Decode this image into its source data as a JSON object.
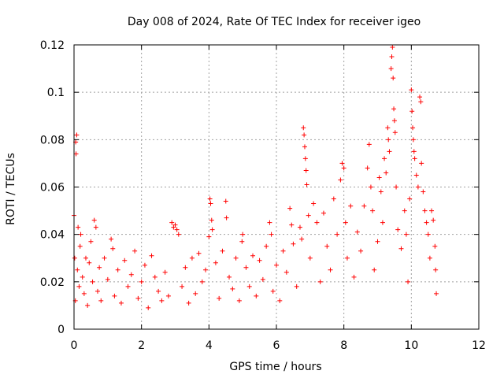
{
  "chart_data": {
    "type": "scatter",
    "title": "Day 008 of 2024, Rate Of TEC Index for receiver igeo",
    "xlabel": "GPS time / hours",
    "ylabel": "ROTI / TECUs",
    "xlim": [
      0,
      12
    ],
    "ylim": [
      0,
      0.12
    ],
    "x_ticks": [
      "0",
      "2",
      "4",
      "6",
      "8",
      "10",
      "12"
    ],
    "y_ticks": [
      "0",
      "0.02",
      "0.04",
      "0.06",
      "0.08",
      "0.1",
      "0.12"
    ],
    "grid": true,
    "marker": "+",
    "series": [
      {
        "name": "ROTI",
        "color": "#ff0000",
        "points": [
          [
            0.0,
            0.048
          ],
          [
            0.02,
            0.03
          ],
          [
            0.04,
            0.012
          ],
          [
            0.05,
            0.079
          ],
          [
            0.06,
            0.074
          ],
          [
            0.08,
            0.082
          ],
          [
            0.1,
            0.025
          ],
          [
            0.12,
            0.043
          ],
          [
            0.15,
            0.018
          ],
          [
            0.18,
            0.035
          ],
          [
            0.2,
            0.04
          ],
          [
            0.25,
            0.022
          ],
          [
            0.3,
            0.015
          ],
          [
            0.35,
            0.03
          ],
          [
            0.4,
            0.01
          ],
          [
            0.45,
            0.028
          ],
          [
            0.5,
            0.037
          ],
          [
            0.55,
            0.02
          ],
          [
            0.6,
            0.046
          ],
          [
            0.65,
            0.043
          ],
          [
            0.7,
            0.016
          ],
          [
            0.75,
            0.026
          ],
          [
            0.8,
            0.012
          ],
          [
            0.9,
            0.03
          ],
          [
            1.0,
            0.021
          ],
          [
            1.1,
            0.038
          ],
          [
            1.15,
            0.034
          ],
          [
            1.2,
            0.014
          ],
          [
            1.3,
            0.025
          ],
          [
            1.4,
            0.011
          ],
          [
            1.5,
            0.029
          ],
          [
            1.6,
            0.018
          ],
          [
            1.7,
            0.023
          ],
          [
            1.8,
            0.033
          ],
          [
            1.9,
            0.013
          ],
          [
            2.0,
            0.02
          ],
          [
            2.1,
            0.027
          ],
          [
            2.2,
            0.009
          ],
          [
            2.3,
            0.031
          ],
          [
            2.4,
            0.022
          ],
          [
            2.5,
            0.016
          ],
          [
            2.6,
            0.012
          ],
          [
            2.7,
            0.024
          ],
          [
            2.8,
            0.014
          ],
          [
            2.9,
            0.045
          ],
          [
            2.95,
            0.043
          ],
          [
            3.0,
            0.044
          ],
          [
            3.05,
            0.042
          ],
          [
            3.1,
            0.04
          ],
          [
            3.2,
            0.018
          ],
          [
            3.3,
            0.026
          ],
          [
            3.4,
            0.011
          ],
          [
            3.5,
            0.03
          ],
          [
            3.6,
            0.015
          ],
          [
            3.7,
            0.032
          ],
          [
            3.8,
            0.02
          ],
          [
            3.9,
            0.025
          ],
          [
            4.0,
            0.039
          ],
          [
            4.03,
            0.055
          ],
          [
            4.05,
            0.053
          ],
          [
            4.08,
            0.046
          ],
          [
            4.1,
            0.042
          ],
          [
            4.2,
            0.028
          ],
          [
            4.3,
            0.013
          ],
          [
            4.4,
            0.033
          ],
          [
            4.5,
            0.054
          ],
          [
            4.52,
            0.047
          ],
          [
            4.6,
            0.022
          ],
          [
            4.7,
            0.017
          ],
          [
            4.8,
            0.03
          ],
          [
            4.9,
            0.012
          ],
          [
            4.98,
            0.037
          ],
          [
            5.0,
            0.04
          ],
          [
            5.1,
            0.026
          ],
          [
            5.2,
            0.018
          ],
          [
            5.3,
            0.031
          ],
          [
            5.4,
            0.014
          ],
          [
            5.5,
            0.029
          ],
          [
            5.6,
            0.021
          ],
          [
            5.7,
            0.035
          ],
          [
            5.8,
            0.045
          ],
          [
            5.85,
            0.04
          ],
          [
            5.9,
            0.016
          ],
          [
            6.0,
            0.027
          ],
          [
            6.1,
            0.012
          ],
          [
            6.2,
            0.033
          ],
          [
            6.3,
            0.024
          ],
          [
            6.4,
            0.051
          ],
          [
            6.45,
            0.044
          ],
          [
            6.5,
            0.036
          ],
          [
            6.6,
            0.018
          ],
          [
            6.7,
            0.043
          ],
          [
            6.75,
            0.038
          ],
          [
            6.8,
            0.085
          ],
          [
            6.82,
            0.082
          ],
          [
            6.84,
            0.077
          ],
          [
            6.86,
            0.072
          ],
          [
            6.88,
            0.067
          ],
          [
            6.9,
            0.061
          ],
          [
            6.95,
            0.048
          ],
          [
            7.0,
            0.03
          ],
          [
            7.1,
            0.053
          ],
          [
            7.2,
            0.045
          ],
          [
            7.3,
            0.02
          ],
          [
            7.4,
            0.049
          ],
          [
            7.5,
            0.035
          ],
          [
            7.6,
            0.025
          ],
          [
            7.7,
            0.055
          ],
          [
            7.8,
            0.04
          ],
          [
            7.9,
            0.063
          ],
          [
            7.95,
            0.07
          ],
          [
            8.0,
            0.068
          ],
          [
            8.05,
            0.045
          ],
          [
            8.1,
            0.03
          ],
          [
            8.2,
            0.052
          ],
          [
            8.3,
            0.022
          ],
          [
            8.4,
            0.041
          ],
          [
            8.5,
            0.033
          ],
          [
            8.6,
            0.052
          ],
          [
            8.7,
            0.068
          ],
          [
            8.75,
            0.078
          ],
          [
            8.8,
            0.06
          ],
          [
            8.85,
            0.05
          ],
          [
            8.9,
            0.025
          ],
          [
            9.0,
            0.037
          ],
          [
            9.05,
            0.064
          ],
          [
            9.1,
            0.058
          ],
          [
            9.15,
            0.045
          ],
          [
            9.2,
            0.072
          ],
          [
            9.25,
            0.066
          ],
          [
            9.3,
            0.085
          ],
          [
            9.32,
            0.08
          ],
          [
            9.35,
            0.075
          ],
          [
            9.4,
            0.11
          ],
          [
            9.42,
            0.115
          ],
          [
            9.44,
            0.119
          ],
          [
            9.46,
            0.106
          ],
          [
            9.48,
            0.093
          ],
          [
            9.5,
            0.088
          ],
          [
            9.52,
            0.083
          ],
          [
            9.55,
            0.06
          ],
          [
            9.6,
            0.042
          ],
          [
            9.7,
            0.034
          ],
          [
            9.8,
            0.05
          ],
          [
            9.85,
            0.04
          ],
          [
            9.9,
            0.02
          ],
          [
            9.95,
            0.055
          ],
          [
            10.0,
            0.101
          ],
          [
            10.02,
            0.092
          ],
          [
            10.04,
            0.085
          ],
          [
            10.06,
            0.08
          ],
          [
            10.08,
            0.075
          ],
          [
            10.1,
            0.072
          ],
          [
            10.15,
            0.065
          ],
          [
            10.2,
            0.06
          ],
          [
            10.25,
            0.098
          ],
          [
            10.28,
            0.096
          ],
          [
            10.3,
            0.07
          ],
          [
            10.35,
            0.058
          ],
          [
            10.4,
            0.05
          ],
          [
            10.45,
            0.045
          ],
          [
            10.5,
            0.04
          ],
          [
            10.55,
            0.03
          ],
          [
            10.6,
            0.05
          ],
          [
            10.65,
            0.046
          ],
          [
            10.7,
            0.035
          ],
          [
            10.72,
            0.025
          ],
          [
            10.74,
            0.015
          ]
        ]
      }
    ]
  }
}
